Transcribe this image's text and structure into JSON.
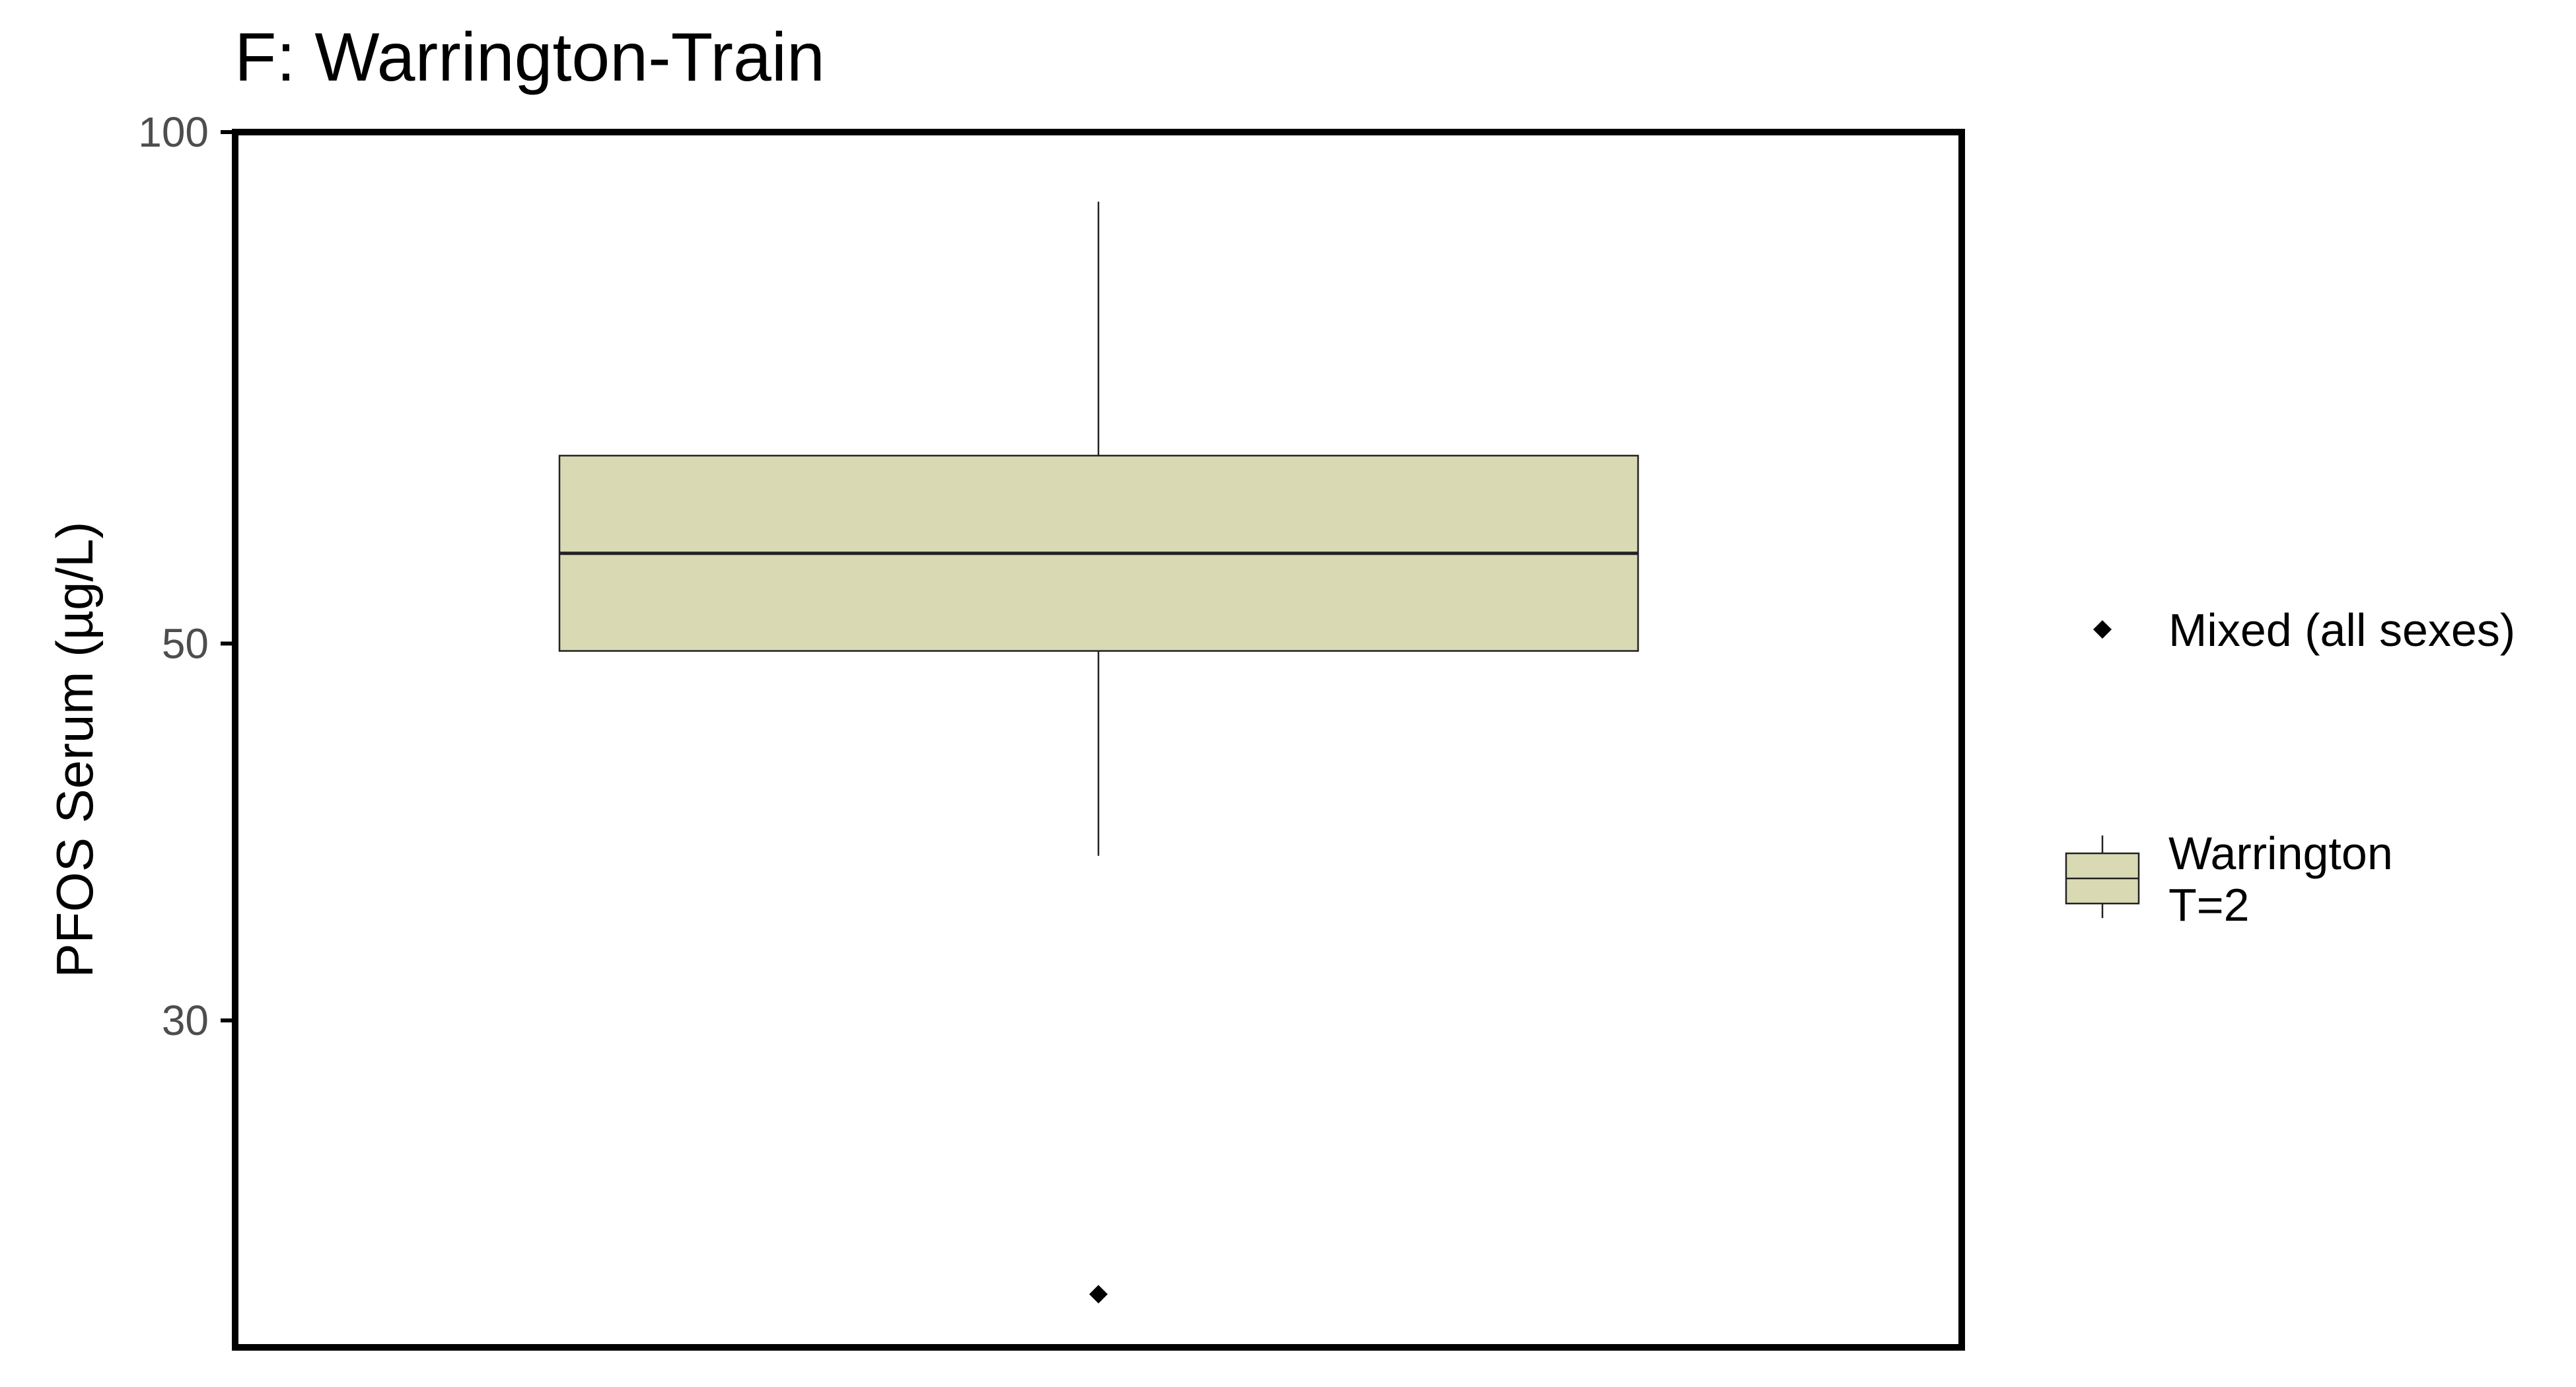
{
  "chart_data": {
    "type": "box",
    "title": "F: Warrington-Train",
    "ylabel": "PFOS Serum (µg/L)",
    "xlabel": "",
    "y_scale": "log",
    "ylim": [
      19.5,
      100
    ],
    "y_ticks": [
      30,
      50,
      100
    ],
    "y_tick_labels": [
      "30",
      "50",
      "100"
    ],
    "grid": false,
    "legend_position": "right",
    "boxes": [
      {
        "name": "Warrington T=2",
        "whisker_low": 37.5,
        "q1": 49.5,
        "median": 56.5,
        "q3": 64.5,
        "whisker_high": 91,
        "fill": "#d9d9b4"
      }
    ],
    "points": [
      {
        "y": 20.7,
        "series": "Mixed (all sexes)",
        "shape": "diamond"
      }
    ],
    "legend": {
      "point_label": "Mixed (all sexes)",
      "box_label_line1": "Warrington",
      "box_label_line2": "T=2"
    },
    "colors": {
      "box_fill": "#d9d9b4",
      "box_stroke": "#222222",
      "point": "#000000",
      "axis": "#000000"
    }
  }
}
